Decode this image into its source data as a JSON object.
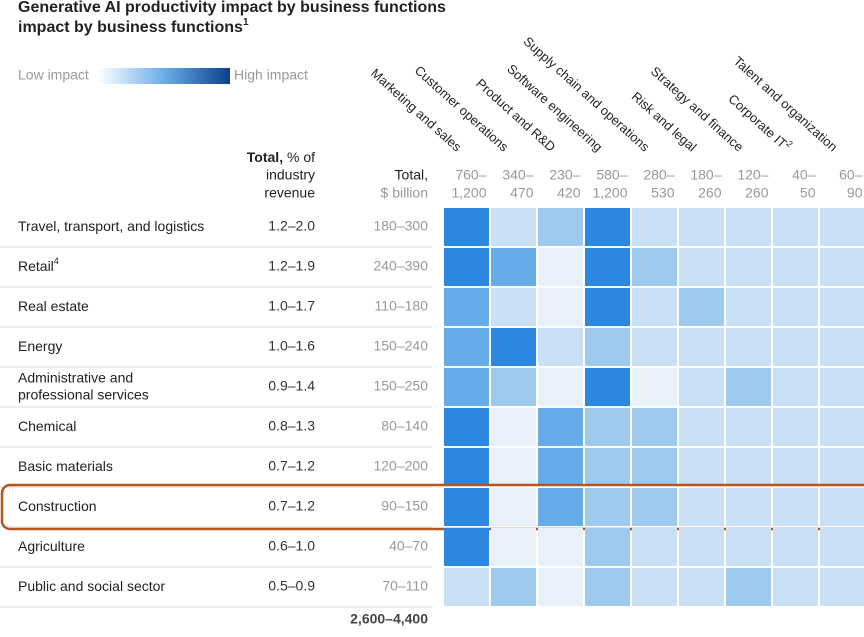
{
  "title": "Generative AI productivity impact by business functions",
  "title_note": "1",
  "legend": {
    "low": "Low impact",
    "high": "High impact"
  },
  "header": {
    "pct_bold": "Total,",
    "pct_rest_1": "% of",
    "pct_rest_2": "industry",
    "pct_rest_3": "revenue",
    "bil_1": "Total,",
    "bil_2": "$ billion"
  },
  "columns": [
    {
      "name": "Marketing and sales",
      "range_1": "760–",
      "range_2": "1,200"
    },
    {
      "name": "Customer operations",
      "range_1": "340–",
      "range_2": "470"
    },
    {
      "name": "Product and R&D",
      "range_1": "230–",
      "range_2": "420"
    },
    {
      "name": "Software engineering",
      "range_1": "580–",
      "range_2": "1,200"
    },
    {
      "name": "Supply chain and operations",
      "range_1": "280–",
      "range_2": "530"
    },
    {
      "name": "Risk and legal",
      "range_1": "180–",
      "range_2": "260"
    },
    {
      "name": "Strategy and finance",
      "range_1": "120–",
      "range_2": "260"
    },
    {
      "name": "Corporate IT",
      "note": "2",
      "range_1": "40–",
      "range_2": "50"
    },
    {
      "name": "Talent and organization",
      "range_1": "60–",
      "range_2": "90"
    }
  ],
  "rows": [
    {
      "name": "Travel, transport, and logistics",
      "pct": "1.2–2.0",
      "bil": "180–300",
      "levels": [
        5,
        2,
        3,
        5,
        2,
        2,
        2,
        2,
        2
      ]
    },
    {
      "name": "Retail",
      "note": "4",
      "pct": "1.2–1.9",
      "bil": "240–390",
      "levels": [
        5,
        4,
        1,
        5,
        3,
        2,
        2,
        2,
        2
      ]
    },
    {
      "name": "Real estate",
      "pct": "1.0–1.7",
      "bil": "110–180",
      "levels": [
        4,
        2,
        1,
        5,
        2,
        3,
        2,
        2,
        2
      ]
    },
    {
      "name": "Energy",
      "pct": "1.0–1.6",
      "bil": "150–240",
      "levels": [
        4,
        5,
        2,
        3,
        2,
        2,
        2,
        2,
        2
      ]
    },
    {
      "name": "Administrative and",
      "name_2": "professional services",
      "pct": "0.9–1.4",
      "bil": "150–250",
      "levels": [
        4,
        3,
        1,
        5,
        1,
        2,
        3,
        2,
        2
      ]
    },
    {
      "name": "Chemical",
      "pct": "0.8–1.3",
      "bil": "80–140",
      "levels": [
        5,
        1,
        4,
        3,
        3,
        2,
        2,
        2,
        2
      ]
    },
    {
      "name": "Basic materials",
      "pct": "0.7–1.2",
      "bil": "120–200",
      "levels": [
        5,
        1,
        4,
        3,
        3,
        2,
        2,
        2,
        2
      ]
    },
    {
      "name": "Construction",
      "pct": "0.7–1.2",
      "bil": "90–150",
      "levels": [
        5,
        1,
        4,
        3,
        3,
        2,
        2,
        2,
        2
      ],
      "highlight": true
    },
    {
      "name": "Agriculture",
      "pct": "0.6–1.0",
      "bil": "40–70",
      "levels": [
        5,
        1,
        1,
        3,
        2,
        2,
        2,
        2,
        2
      ]
    },
    {
      "name": "Public and social sector",
      "pct": "0.5–0.9",
      "bil": "70–110",
      "levels": [
        2,
        3,
        1,
        3,
        2,
        2,
        3,
        2,
        2
      ]
    }
  ],
  "grand_total": "2,600–4,400",
  "palette": [
    "#e8f1fa",
    "#c9e0f6",
    "#9fcaf0",
    "#66ace9",
    "#2b87df"
  ]
}
